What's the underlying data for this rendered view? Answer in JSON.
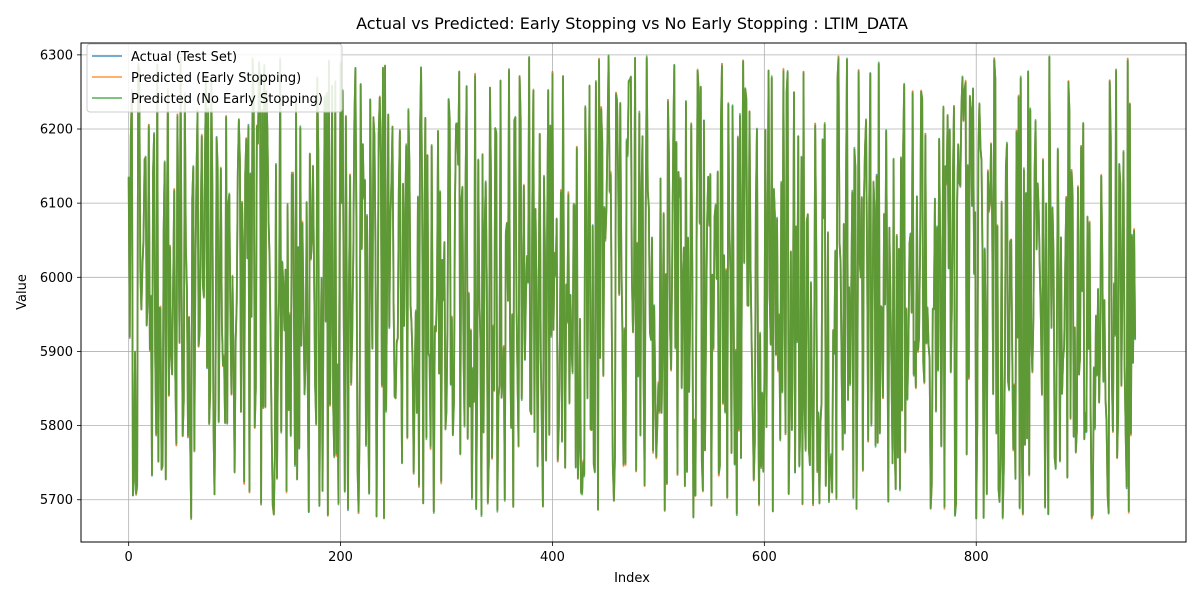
{
  "chart_data": {
    "type": "line",
    "title": "Actual vs Predicted: Early Stopping vs No Early Stopping : LTIM_DATA",
    "xlabel": "Index",
    "ylabel": "Value",
    "xlim": [
      -45,
      998
    ],
    "ylim": [
      5643,
      6316
    ],
    "xticks": [
      0,
      200,
      400,
      600,
      800
    ],
    "yticks": [
      5700,
      5800,
      5900,
      6000,
      6100,
      6200,
      6300
    ],
    "grid": true,
    "legend_position": "top-left",
    "n_points": 951,
    "seed": 7,
    "series": [
      {
        "name": "Actual (Test Set)",
        "color": "#1f77b4",
        "opacity": 0.7,
        "jitter": 0
      },
      {
        "name": "Predicted (Early Stopping)",
        "color": "#ff7f0e",
        "opacity": 0.7,
        "jitter": 2
      },
      {
        "name": "Predicted (No Early Stopping)",
        "color": "#2ca02c",
        "opacity": 0.7,
        "jitter": 3
      }
    ],
    "value_range": [
      5675,
      6298
    ],
    "sample_points": [
      {
        "x": 0,
        "y": 6135
      },
      {
        "x": 1,
        "y": 5918
      },
      {
        "x": 2,
        "y": 6190
      },
      {
        "x": 5,
        "y": 5725
      },
      {
        "x": 200,
        "y": 6290
      },
      {
        "x": 333,
        "y": 5680
      },
      {
        "x": 400,
        "y": 6277
      },
      {
        "x": 478,
        "y": 6296
      },
      {
        "x": 800,
        "y": 5675
      },
      {
        "x": 950,
        "y": 5917
      }
    ]
  }
}
